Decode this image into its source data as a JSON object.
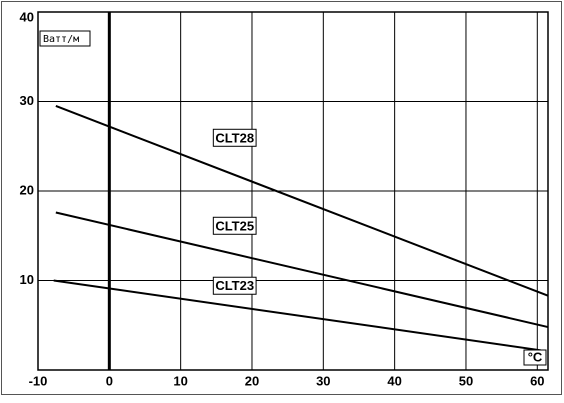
{
  "chart_data": {
    "type": "line",
    "x_label": "°C",
    "y_label": "Ватт/м",
    "series": [
      {
        "name": "CLT28",
        "color": "#000000",
        "x": [
          -7.5,
          61.5
        ],
        "values": [
          29.5,
          8.3
        ]
      },
      {
        "name": "CLT25",
        "color": "#000000",
        "x": [
          -7.5,
          61.5
        ],
        "values": [
          17.6,
          4.8
        ]
      },
      {
        "name": "CLT23",
        "color": "#000000",
        "x": [
          -7.8,
          60.5
        ],
        "values": [
          10.0,
          2.2
        ]
      }
    ],
    "xlim": [
      -10,
      61.5
    ],
    "ylim": [
      0,
      40
    ],
    "xticks": [
      -10,
      0,
      10,
      20,
      30,
      40,
      50,
      60
    ],
    "yticks": [
      10,
      20,
      30,
      40
    ],
    "grid": true
  }
}
